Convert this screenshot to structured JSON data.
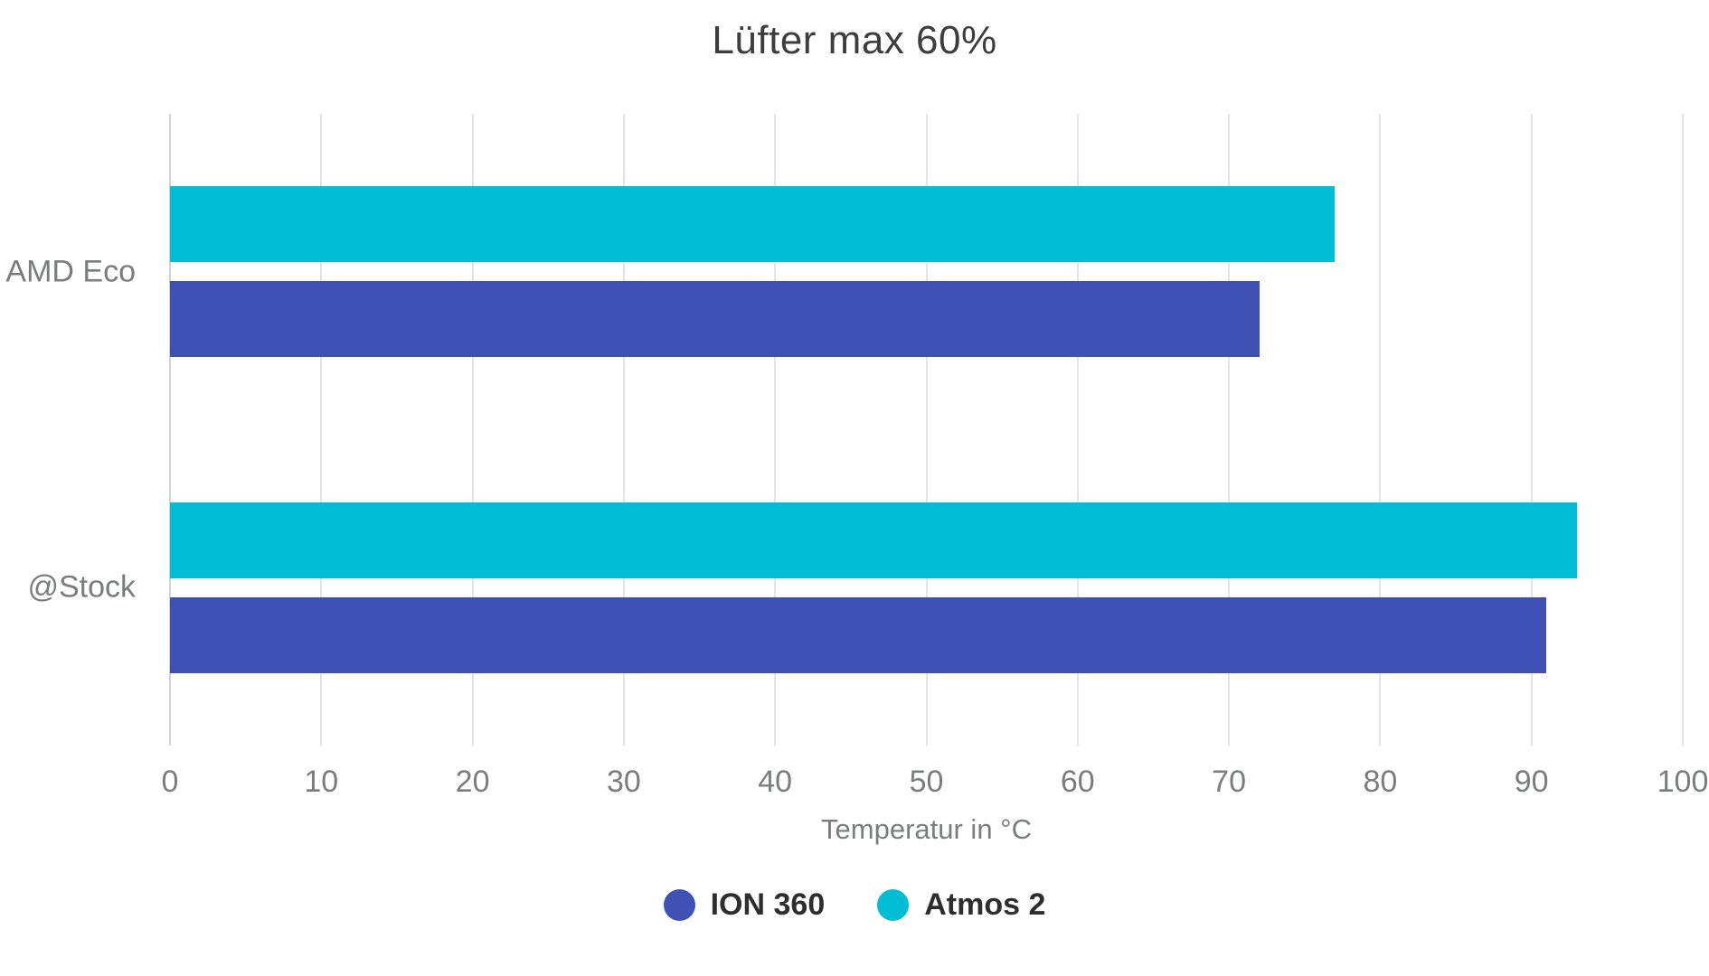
{
  "chart_data": {
    "type": "bar",
    "orientation": "horizontal",
    "title": "Lüfter max 60%",
    "xlabel": "Temperatur in °C",
    "categories": [
      "AMD Eco",
      "@Stock"
    ],
    "series": [
      {
        "name": "ION 360",
        "color": "#3F51B5",
        "values": [
          72,
          91
        ]
      },
      {
        "name": "Atmos 2",
        "color": "#00BCD4",
        "values": [
          77,
          93
        ]
      }
    ],
    "xlim": [
      0,
      100
    ],
    "xticks": [
      0,
      10,
      20,
      30,
      40,
      50,
      60,
      70,
      80,
      90,
      100
    ],
    "grid": true,
    "legend_position": "bottom",
    "colors": {
      "title_text": "#3d3d3d",
      "axis_text": "#7b7c7e",
      "legend_text": "#2e2e30",
      "gridline": "#e3e4e6",
      "zero_line": "#ccd3da",
      "background": "#ffffff"
    }
  }
}
